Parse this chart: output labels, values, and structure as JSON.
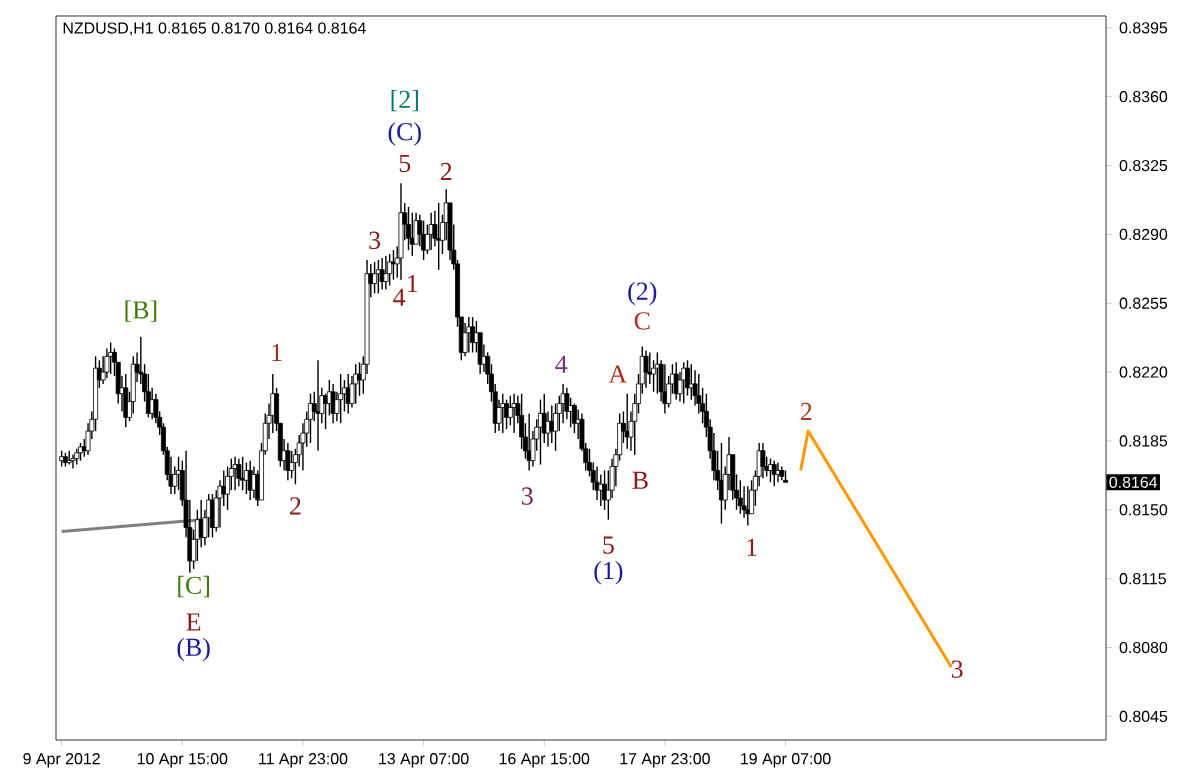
{
  "chart_data": {
    "type": "candlestick",
    "title": "NZDUSD,H1  0.8165 0.8170 0.8164 0.8164",
    "categories": [
      "9 Apr 2012",
      null,
      null,
      null,
      null,
      null,
      null,
      null,
      null,
      null,
      null,
      null,
      null,
      null,
      null,
      null,
      null,
      null,
      null,
      null,
      null,
      null,
      null,
      null,
      null,
      null,
      null,
      null,
      null,
      null,
      null,
      null,
      "10 Apr 15:00",
      null,
      null,
      null,
      null,
      null,
      null,
      null,
      null,
      null,
      null,
      null,
      null,
      null,
      null,
      null,
      null,
      null,
      null,
      null,
      null,
      null,
      null,
      null,
      null,
      null,
      null,
      null,
      null,
      null,
      null,
      null,
      "11 Apr 23:00",
      null,
      null,
      null,
      null,
      null,
      null,
      null,
      null,
      null,
      null,
      null,
      null,
      null,
      null,
      null,
      null,
      null,
      null,
      null,
      null,
      null,
      null,
      null,
      null,
      null,
      null,
      null,
      null,
      null,
      null,
      null,
      "13 Apr 07:00",
      null,
      null,
      null,
      null,
      null,
      null,
      null,
      null,
      null,
      null,
      null,
      null,
      null,
      null,
      null,
      null,
      null,
      null,
      null,
      null,
      null,
      null,
      null,
      null,
      null,
      null,
      null,
      null,
      null,
      null,
      null,
      "16 Apr 15:00",
      null,
      null,
      null,
      null,
      null,
      null,
      null,
      null,
      null,
      null,
      null,
      null,
      null,
      null,
      null,
      null,
      null,
      null,
      null,
      null,
      null,
      null,
      null,
      null,
      null,
      null,
      null,
      null,
      null,
      null,
      null,
      "17 Apr 23:00",
      null,
      null,
      null,
      null,
      null,
      null,
      null,
      null,
      null,
      null,
      null,
      null,
      null,
      null,
      null,
      null,
      null,
      null,
      null,
      null,
      null,
      null,
      null,
      null,
      null,
      null,
      null,
      null,
      null,
      null,
      null,
      "19 Apr 07:00",
      null,
      null,
      null,
      null,
      null,
      null,
      null,
      null,
      null,
      null,
      null,
      null,
      null,
      null,
      null,
      null,
      null,
      null,
      null,
      null,
      null,
      null,
      null,
      null,
      null,
      null,
      null,
      null,
      null,
      null,
      null,
      null,
      null,
      null,
      null,
      null,
      null,
      null,
      null,
      null,
      null,
      null,
      null,
      null,
      null,
      null,
      null,
      null,
      null,
      null,
      null,
      null,
      null,
      null,
      null,
      null,
      null,
      null,
      null,
      null,
      null,
      null,
      null,
      null,
      null,
      null,
      null,
      null,
      null,
      null,
      null,
      null,
      null,
      null,
      null,
      null,
      null,
      null,
      null,
      null,
      null,
      null,
      null,
      null,
      null
    ],
    "ohlc": [
      [
        0.8175,
        0.818,
        0.8172,
        0.8177
      ],
      [
        0.8177,
        0.8179,
        0.8172,
        0.8174
      ],
      [
        0.8174,
        0.818,
        0.8173,
        0.8175
      ],
      [
        0.8175,
        0.8178,
        0.8171,
        0.8176
      ],
      [
        0.8176,
        0.8181,
        0.8173,
        0.8179
      ],
      [
        0.8179,
        0.8184,
        0.8175,
        0.8182
      ],
      [
        0.8182,
        0.8186,
        0.8177,
        0.818
      ],
      [
        0.818,
        0.8194,
        0.8178,
        0.819
      ],
      [
        0.819,
        0.82,
        0.8186,
        0.8196
      ],
      [
        0.8196,
        0.8228,
        0.819,
        0.8222
      ],
      [
        0.8222,
        0.8226,
        0.8212,
        0.8216
      ],
      [
        0.8216,
        0.8228,
        0.8214,
        0.822
      ],
      [
        0.822,
        0.8232,
        0.8217,
        0.8228
      ],
      [
        0.8228,
        0.8235,
        0.8219,
        0.823
      ],
      [
        0.823,
        0.8232,
        0.8218,
        0.8225
      ],
      [
        0.8225,
        0.8225,
        0.8204,
        0.8209
      ],
      [
        0.8209,
        0.8218,
        0.82,
        0.8212
      ],
      [
        0.8212,
        0.8219,
        0.8192,
        0.8197
      ],
      [
        0.8197,
        0.821,
        0.8195,
        0.8205
      ],
      [
        0.8205,
        0.8228,
        0.8199,
        0.8224
      ],
      [
        0.8224,
        0.823,
        0.8215,
        0.822
      ],
      [
        0.822,
        0.8238,
        0.8214,
        0.8219
      ],
      [
        0.8219,
        0.8224,
        0.8205,
        0.821
      ],
      [
        0.821,
        0.8219,
        0.8197,
        0.8199
      ],
      [
        0.8199,
        0.8212,
        0.8196,
        0.8206
      ],
      [
        0.8206,
        0.8209,
        0.8194,
        0.8197
      ],
      [
        0.8197,
        0.82,
        0.8188,
        0.8192
      ],
      [
        0.8192,
        0.8194,
        0.8178,
        0.818
      ],
      [
        0.818,
        0.8182,
        0.8165,
        0.8168
      ],
      [
        0.8168,
        0.8177,
        0.8158,
        0.8162
      ],
      [
        0.8162,
        0.8172,
        0.8158,
        0.8168
      ],
      [
        0.8168,
        0.8177,
        0.816,
        0.817
      ],
      [
        0.817,
        0.8175,
        0.8152,
        0.8155
      ],
      [
        0.8155,
        0.818,
        0.8136,
        0.8141
      ],
      [
        0.8141,
        0.8155,
        0.8118,
        0.8124
      ],
      [
        0.8124,
        0.814,
        0.812,
        0.8135
      ],
      [
        0.8135,
        0.815,
        0.8124,
        0.8145
      ],
      [
        0.8145,
        0.8155,
        0.8131,
        0.8136
      ],
      [
        0.8136,
        0.815,
        0.8132,
        0.8146
      ],
      [
        0.8146,
        0.8158,
        0.8136,
        0.8155
      ],
      [
        0.8155,
        0.8158,
        0.8136,
        0.8141
      ],
      [
        0.8141,
        0.816,
        0.8139,
        0.8156
      ],
      [
        0.8156,
        0.8165,
        0.8141,
        0.8162
      ],
      [
        0.8162,
        0.817,
        0.8152,
        0.8158
      ],
      [
        0.8158,
        0.8172,
        0.815,
        0.8167
      ],
      [
        0.8167,
        0.8176,
        0.816,
        0.8171
      ],
      [
        0.8171,
        0.8177,
        0.816,
        0.8173
      ],
      [
        0.8173,
        0.8176,
        0.8162,
        0.8166
      ],
      [
        0.8166,
        0.8177,
        0.816,
        0.8165
      ],
      [
        0.8165,
        0.8174,
        0.8158,
        0.817
      ],
      [
        0.817,
        0.8175,
        0.8155,
        0.816
      ],
      [
        0.816,
        0.8172,
        0.8156,
        0.8168
      ],
      [
        0.8168,
        0.817,
        0.8152,
        0.8155
      ],
      [
        0.8155,
        0.8184,
        0.8155,
        0.818
      ],
      [
        0.818,
        0.8199,
        0.8178,
        0.8194
      ],
      [
        0.8194,
        0.8204,
        0.8186,
        0.8198
      ],
      [
        0.8198,
        0.8219,
        0.8189,
        0.8209
      ],
      [
        0.8209,
        0.8212,
        0.819,
        0.8194
      ],
      [
        0.8194,
        0.8194,
        0.8172,
        0.8175
      ],
      [
        0.8175,
        0.8186,
        0.817,
        0.818
      ],
      [
        0.818,
        0.8184,
        0.8165,
        0.817
      ],
      [
        0.817,
        0.818,
        0.8166,
        0.8174
      ],
      [
        0.8174,
        0.8181,
        0.8163,
        0.8178
      ],
      [
        0.8178,
        0.8188,
        0.8172,
        0.8184
      ],
      [
        0.8184,
        0.8194,
        0.817,
        0.8189
      ],
      [
        0.8189,
        0.82,
        0.8182,
        0.8196
      ],
      [
        0.8196,
        0.8209,
        0.8184,
        0.8204
      ],
      [
        0.8204,
        0.821,
        0.8195,
        0.82
      ],
      [
        0.82,
        0.8226,
        0.818,
        0.8199
      ],
      [
        0.8199,
        0.8212,
        0.8194,
        0.8208
      ],
      [
        0.8208,
        0.8209,
        0.8191,
        0.8204
      ],
      [
        0.8204,
        0.8216,
        0.8198,
        0.821
      ],
      [
        0.821,
        0.8214,
        0.8194,
        0.8199
      ],
      [
        0.8199,
        0.821,
        0.8195,
        0.8206
      ],
      [
        0.8206,
        0.8219,
        0.8194,
        0.8209
      ],
      [
        0.8209,
        0.8216,
        0.82,
        0.8212
      ],
      [
        0.8212,
        0.8219,
        0.8199,
        0.8204
      ],
      [
        0.8204,
        0.8218,
        0.8202,
        0.8214
      ],
      [
        0.8214,
        0.8224,
        0.8204,
        0.8219
      ],
      [
        0.8219,
        0.8225,
        0.8208,
        0.8216
      ],
      [
        0.8216,
        0.8228,
        0.8209,
        0.8224
      ],
      [
        0.8224,
        0.8277,
        0.8219,
        0.827
      ],
      [
        0.827,
        0.8275,
        0.8258,
        0.8265
      ],
      [
        0.8265,
        0.8276,
        0.826,
        0.827
      ],
      [
        0.827,
        0.8277,
        0.826,
        0.8272
      ],
      [
        0.8272,
        0.8278,
        0.8262,
        0.8266
      ],
      [
        0.8266,
        0.8279,
        0.8262,
        0.827
      ],
      [
        0.827,
        0.828,
        0.8264,
        0.8276
      ],
      [
        0.8276,
        0.8282,
        0.8267,
        0.8275
      ],
      [
        0.8275,
        0.8284,
        0.8268,
        0.8278
      ],
      [
        0.8278,
        0.8316,
        0.8267,
        0.8301
      ],
      [
        0.8301,
        0.8306,
        0.8287,
        0.8295
      ],
      [
        0.8295,
        0.8304,
        0.8282,
        0.8288
      ],
      [
        0.8288,
        0.8301,
        0.8279,
        0.8285
      ],
      [
        0.8285,
        0.8301,
        0.8285,
        0.8297
      ],
      [
        0.8297,
        0.83,
        0.8284,
        0.829
      ],
      [
        0.829,
        0.8297,
        0.8277,
        0.8282
      ],
      [
        0.8282,
        0.8295,
        0.828,
        0.829
      ],
      [
        0.829,
        0.8301,
        0.8282,
        0.8295
      ],
      [
        0.8295,
        0.8302,
        0.8284,
        0.8288
      ],
      [
        0.8288,
        0.8306,
        0.8272,
        0.8287
      ],
      [
        0.8287,
        0.83,
        0.828,
        0.8296
      ],
      [
        0.8296,
        0.8313,
        0.8287,
        0.8306
      ],
      [
        0.8306,
        0.8306,
        0.8277,
        0.8282
      ],
      [
        0.8282,
        0.8295,
        0.8272,
        0.8275
      ],
      [
        0.8275,
        0.8277,
        0.8243,
        0.8248
      ],
      [
        0.8248,
        0.8248,
        0.8226,
        0.823
      ],
      [
        0.823,
        0.8245,
        0.8228,
        0.824
      ],
      [
        0.824,
        0.8248,
        0.823,
        0.8243
      ],
      [
        0.8243,
        0.8248,
        0.823,
        0.8235
      ],
      [
        0.8235,
        0.8246,
        0.823,
        0.824
      ],
      [
        0.824,
        0.824,
        0.8219,
        0.8224
      ],
      [
        0.8224,
        0.8234,
        0.822,
        0.8228
      ],
      [
        0.8228,
        0.823,
        0.8214,
        0.8219
      ],
      [
        0.8219,
        0.8224,
        0.8205,
        0.821
      ],
      [
        0.821,
        0.8214,
        0.8189,
        0.8194
      ],
      [
        0.8194,
        0.8206,
        0.819,
        0.8202
      ],
      [
        0.8202,
        0.8209,
        0.8189,
        0.8204
      ],
      [
        0.8204,
        0.8206,
        0.8191,
        0.8197
      ],
      [
        0.8197,
        0.8208,
        0.8193,
        0.8202
      ],
      [
        0.8202,
        0.8209,
        0.8189,
        0.8204
      ],
      [
        0.8204,
        0.8208,
        0.8194,
        0.8198
      ],
      [
        0.8198,
        0.8209,
        0.8181,
        0.8187
      ],
      [
        0.8187,
        0.8194,
        0.8176,
        0.818
      ],
      [
        0.818,
        0.8199,
        0.817,
        0.8175
      ],
      [
        0.8175,
        0.819,
        0.8172,
        0.8186
      ],
      [
        0.8186,
        0.8196,
        0.818,
        0.8192
      ],
      [
        0.8192,
        0.8206,
        0.8173,
        0.8199
      ],
      [
        0.8199,
        0.8209,
        0.8184,
        0.8189
      ],
      [
        0.8189,
        0.82,
        0.8182,
        0.8195
      ],
      [
        0.8195,
        0.8203,
        0.8184,
        0.819
      ],
      [
        0.819,
        0.8204,
        0.818,
        0.8199
      ],
      [
        0.8199,
        0.8208,
        0.819,
        0.8204
      ],
      [
        0.8204,
        0.8214,
        0.8194,
        0.8209
      ],
      [
        0.8209,
        0.8212,
        0.8196,
        0.82
      ],
      [
        0.82,
        0.8207,
        0.8192,
        0.8203
      ],
      [
        0.8203,
        0.8204,
        0.8189,
        0.8194
      ],
      [
        0.8194,
        0.8201,
        0.8186,
        0.8196
      ],
      [
        0.8196,
        0.8199,
        0.818,
        0.8181
      ],
      [
        0.8181,
        0.8184,
        0.817,
        0.8174
      ],
      [
        0.8174,
        0.8181,
        0.8167,
        0.817
      ],
      [
        0.817,
        0.8174,
        0.816,
        0.8164
      ],
      [
        0.8164,
        0.8172,
        0.8155,
        0.816
      ],
      [
        0.816,
        0.8168,
        0.8152,
        0.8163
      ],
      [
        0.8163,
        0.817,
        0.815,
        0.8155
      ],
      [
        0.8155,
        0.817,
        0.8145,
        0.816
      ],
      [
        0.816,
        0.8176,
        0.8156,
        0.8172
      ],
      [
        0.8172,
        0.8181,
        0.8162,
        0.8178
      ],
      [
        0.8178,
        0.8199,
        0.8175,
        0.8194
      ],
      [
        0.8194,
        0.82,
        0.8184,
        0.819
      ],
      [
        0.819,
        0.8209,
        0.8181,
        0.8187
      ],
      [
        0.8187,
        0.82,
        0.818,
        0.8195
      ],
      [
        0.8195,
        0.8209,
        0.8178,
        0.8204
      ],
      [
        0.8204,
        0.8219,
        0.8199,
        0.8214
      ],
      [
        0.8214,
        0.8233,
        0.8209,
        0.8228
      ],
      [
        0.8228,
        0.8231,
        0.8212,
        0.822
      ],
      [
        0.822,
        0.823,
        0.8214,
        0.8219
      ],
      [
        0.8219,
        0.8226,
        0.821,
        0.8222
      ],
      [
        0.8222,
        0.823,
        0.8209,
        0.8224
      ],
      [
        0.8224,
        0.8226,
        0.8205,
        0.821
      ],
      [
        0.821,
        0.8224,
        0.8199,
        0.8204
      ],
      [
        0.8204,
        0.8218,
        0.8202,
        0.8214
      ],
      [
        0.8214,
        0.8224,
        0.8209,
        0.8219
      ],
      [
        0.8219,
        0.8225,
        0.8206,
        0.8209
      ],
      [
        0.8209,
        0.822,
        0.8205,
        0.8216
      ],
      [
        0.8216,
        0.8225,
        0.8204,
        0.8222
      ],
      [
        0.8222,
        0.8226,
        0.8208,
        0.8212
      ],
      [
        0.8212,
        0.8224,
        0.8206,
        0.8214
      ],
      [
        0.8214,
        0.8221,
        0.8203,
        0.8208
      ],
      [
        0.8208,
        0.8219,
        0.8199,
        0.8204
      ],
      [
        0.8204,
        0.8212,
        0.8194,
        0.82
      ],
      [
        0.82,
        0.8209,
        0.8187,
        0.8192
      ],
      [
        0.8192,
        0.8196,
        0.8176,
        0.818
      ],
      [
        0.818,
        0.8189,
        0.8165,
        0.817
      ],
      [
        0.817,
        0.818,
        0.816,
        0.8165
      ],
      [
        0.8165,
        0.8184,
        0.8143,
        0.8155
      ],
      [
        0.8155,
        0.8172,
        0.815,
        0.8168
      ],
      [
        0.8168,
        0.8187,
        0.816,
        0.8178
      ],
      [
        0.8178,
        0.8178,
        0.8155,
        0.816
      ],
      [
        0.816,
        0.8168,
        0.815,
        0.8156
      ],
      [
        0.8156,
        0.8165,
        0.8148,
        0.8152
      ],
      [
        0.8152,
        0.8162,
        0.8146,
        0.815
      ],
      [
        0.815,
        0.8162,
        0.8142,
        0.8148
      ],
      [
        0.8148,
        0.8165,
        0.8148,
        0.816
      ],
      [
        0.816,
        0.817,
        0.8152,
        0.8167
      ],
      [
        0.8167,
        0.8184,
        0.8162,
        0.818
      ],
      [
        0.818,
        0.8184,
        0.8166,
        0.8172
      ],
      [
        0.8172,
        0.8177,
        0.8167,
        0.817
      ],
      [
        0.817,
        0.8176,
        0.8164,
        0.8173
      ],
      [
        0.8173,
        0.8175,
        0.8162,
        0.8168
      ],
      [
        0.8168,
        0.8174,
        0.8164,
        0.817
      ],
      [
        0.817,
        0.8172,
        0.8165,
        0.8167
      ],
      [
        0.8165,
        0.817,
        0.8164,
        0.8164
      ],
      null,
      null,
      null,
      null,
      null,
      null,
      null,
      null,
      null,
      null,
      null,
      null,
      null,
      null,
      null,
      null,
      null,
      null,
      null,
      null,
      null,
      null,
      null,
      null,
      null,
      null,
      null,
      null,
      null,
      null,
      null,
      null,
      null,
      null,
      null,
      null,
      null,
      null,
      null,
      null,
      null,
      null,
      null,
      null,
      null,
      null,
      null,
      null,
      null,
      null,
      null,
      null,
      null,
      null,
      null,
      null,
      null,
      null,
      null,
      null,
      null,
      null,
      null,
      null,
      null,
      null,
      null,
      null,
      null,
      null,
      null,
      null,
      null,
      null,
      null,
      null,
      null,
      null,
      null,
      null,
      null,
      null,
      null,
      null,
      null
    ],
    "series": [
      {
        "type": "line",
        "color": "#808080",
        "values": [
          0.8139,
          null,
          null,
          null,
          null,
          null,
          null,
          null,
          null,
          null,
          null,
          null,
          null,
          null,
          null,
          null,
          null,
          null,
          null,
          null,
          null,
          null,
          null,
          null,
          null,
          null,
          null,
          null,
          null,
          null,
          null,
          null,
          null,
          null,
          null,
          null,
          null,
          0.8145,
          null,
          null,
          null,
          null,
          null,
          null,
          null,
          null,
          null,
          null,
          null,
          null,
          null,
          null,
          null,
          null,
          null,
          null,
          null,
          null,
          null,
          null,
          null,
          null,
          null,
          null,
          null,
          null,
          null,
          null,
          null,
          null,
          null,
          null,
          null,
          null,
          null,
          null,
          null,
          null,
          null,
          null,
          null,
          null,
          null,
          null,
          null,
          null,
          null,
          null,
          null,
          null,
          null,
          null,
          null,
          null,
          null,
          null,
          null,
          null,
          null,
          null,
          null,
          null,
          null,
          null,
          null,
          null,
          null,
          null,
          null,
          null,
          null,
          null,
          null,
          null,
          null,
          null,
          null,
          null,
          null,
          null,
          null,
          null,
          null,
          null,
          null,
          null,
          null,
          null,
          null,
          null,
          null,
          null,
          null,
          null,
          null,
          null,
          null,
          null,
          null,
          null,
          null,
          null,
          null,
          null,
          null,
          null,
          null,
          null,
          null,
          null,
          null,
          null,
          null,
          null,
          null,
          null,
          null,
          null,
          null,
          null,
          null,
          null,
          null,
          null,
          null,
          null,
          null,
          null,
          null,
          null,
          null,
          null,
          null,
          null,
          null,
          null,
          null,
          null,
          null,
          null,
          null,
          null,
          null,
          null,
          null,
          null,
          null,
          null,
          null,
          null,
          null,
          null,
          null,
          null,
          null,
          null,
          null,
          null,
          null,
          null,
          null,
          null,
          null,
          null,
          null,
          null,
          null,
          null,
          null,
          null,
          null,
          null,
          null,
          null,
          null,
          null,
          null,
          null,
          null,
          null,
          null,
          null,
          null,
          null,
          null,
          null,
          null,
          null,
          null,
          null,
          null,
          null,
          null,
          null,
          null,
          null,
          null,
          null,
          null,
          null,
          null,
          null,
          null,
          null,
          null,
          null,
          null,
          null,
          null,
          null,
          null,
          null,
          null,
          null,
          null,
          null,
          null,
          null,
          null,
          null,
          null,
          null,
          null,
          null,
          null,
          null,
          null,
          null,
          null,
          null,
          null,
          null,
          null,
          null,
          null,
          null,
          null,
          null
        ]
      },
      {
        "type": "line",
        "color": "#ff9900",
        "values": [
          null,
          null,
          null,
          null,
          null,
          null,
          null,
          null,
          null,
          null,
          null,
          null,
          null,
          null,
          null,
          null,
          null,
          null,
          null,
          null,
          null,
          null,
          null,
          null,
          null,
          null,
          null,
          null,
          null,
          null,
          null,
          null,
          null,
          null,
          null,
          null,
          null,
          null,
          null,
          null,
          null,
          null,
          null,
          null,
          null,
          null,
          null,
          null,
          null,
          null,
          null,
          null,
          null,
          null,
          null,
          null,
          null,
          null,
          null,
          null,
          null,
          null,
          null,
          null,
          null,
          null,
          null,
          null,
          null,
          null,
          null,
          null,
          null,
          null,
          null,
          null,
          null,
          null,
          null,
          null,
          null,
          null,
          null,
          null,
          null,
          null,
          null,
          null,
          null,
          null,
          null,
          null,
          null,
          null,
          null,
          null,
          null,
          null,
          null,
          null,
          null,
          null,
          null,
          null,
          null,
          null,
          null,
          null,
          null,
          null,
          null,
          null,
          null,
          null,
          null,
          null,
          null,
          null,
          null,
          null,
          null,
          null,
          null,
          null,
          null,
          null,
          null,
          null,
          null,
          null,
          null,
          null,
          null,
          null,
          null,
          null,
          null,
          null,
          null,
          null,
          null,
          null,
          null,
          null,
          null,
          null,
          null,
          null,
          null,
          null,
          null,
          null,
          null,
          null,
          null,
          null,
          null,
          null,
          null,
          null,
          null,
          null,
          null,
          null,
          null,
          null,
          null,
          null,
          null,
          null,
          null,
          null,
          null,
          null,
          null,
          null,
          null,
          null,
          null,
          null,
          null,
          null,
          null,
          null,
          null,
          null,
          null,
          null,
          null,
          null,
          null,
          null,
          null,
          null,
          null,
          null,
          0.817,
          null,
          0.819,
          null,
          null,
          null,
          null,
          null,
          null,
          null,
          null,
          null,
          null,
          null,
          null,
          null,
          null,
          null,
          null,
          null,
          null,
          null,
          null,
          null,
          null,
          null,
          null,
          null,
          null,
          null,
          null,
          null,
          null,
          null,
          null,
          null,
          null,
          null,
          null,
          null,
          0.807,
          null,
          null,
          null,
          null,
          null,
          null,
          null,
          null,
          null,
          null,
          null,
          null,
          null,
          null,
          null,
          null,
          null,
          null,
          null,
          null,
          null,
          null,
          null,
          null,
          null,
          null,
          null,
          null,
          null,
          null,
          null,
          null,
          null,
          null,
          null,
          null,
          null,
          null,
          null,
          null,
          null
        ]
      }
    ],
    "ylim": [
      0.8033,
      0.8401
    ],
    "yticks": [
      0.8045,
      {
        "value": 0.808,
        "label": "0.8080"
      },
      0.8115,
      {
        "value": 0.815,
        "label": "0.8150"
      },
      0.8185,
      {
        "value": 0.822,
        "label": "0.8220"
      },
      0.8255,
      {
        "value": 0.829,
        "label": "0.8290"
      },
      0.8325,
      {
        "value": 0.836,
        "label": "0.8360"
      },
      0.8395
    ],
    "annotations": [
      "[B]",
      "[C]",
      "E",
      "(B)",
      "1",
      "2",
      "3",
      "4",
      "1",
      "5",
      "(C)",
      "[2]",
      "2",
      "3",
      "4",
      "5",
      "(1)",
      "A",
      "B",
      "C",
      "(2)",
      "1",
      "2",
      "3",
      "0.8164"
    ]
  }
}
